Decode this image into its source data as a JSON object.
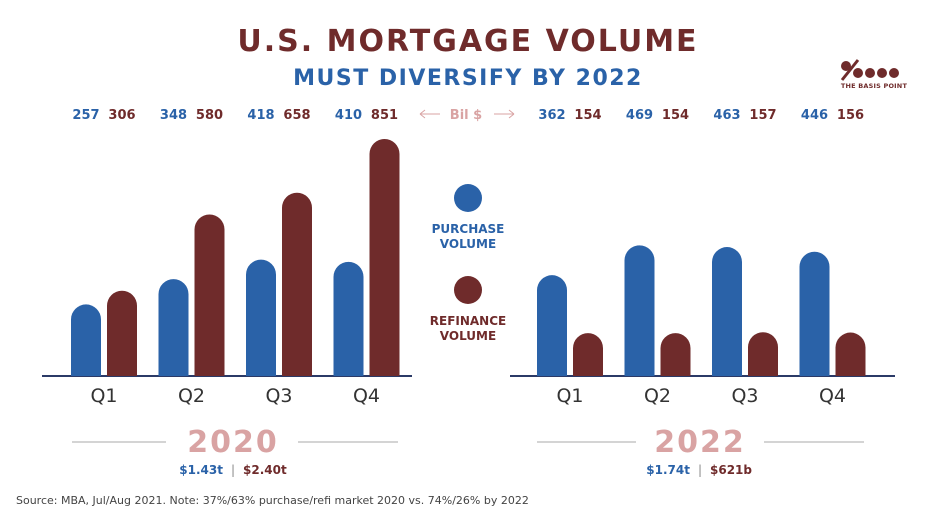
{
  "title": "U.S. MORTGAGE VOLUME",
  "subtitle": "MUST DIVERSIFY BY 2022",
  "logo": {
    "text": "THE BASIS POINT"
  },
  "source": "Source: MBA, Jul/Aug 2021. Note: 37%/63% purchase/refi market 2020 vs. 74%/26% by 2022",
  "colors": {
    "purchase": "#2a62a8",
    "refinance": "#6f2b2b",
    "year_label": "#d9a3a3",
    "axis": "#2b3a67"
  },
  "chart_data": {
    "type": "bar",
    "unit_label": "Bil $",
    "legend": [
      {
        "label_line1": "PURCHASE",
        "label_line2": "VOLUME"
      },
      {
        "label_line1": "REFINANCE",
        "label_line2": "VOLUME"
      }
    ],
    "groups": [
      {
        "year": "2020",
        "categories": [
          "Q1",
          "Q2",
          "Q3",
          "Q4"
        ],
        "purchase": [
          257,
          348,
          418,
          410
        ],
        "refinance": [
          306,
          580,
          658,
          851
        ],
        "total_purchase": "$1.43t",
        "total_refinance": "$2.40t",
        "total_separator": "|"
      },
      {
        "year": "2022",
        "categories": [
          "Q1",
          "Q2",
          "Q3",
          "Q4"
        ],
        "purchase": [
          362,
          469,
          463,
          446
        ],
        "refinance": [
          154,
          154,
          157,
          156
        ],
        "total_purchase": "$1.74t",
        "total_refinance": "$621b",
        "total_separator": "|"
      }
    ],
    "ylim": [
      0,
      851
    ]
  }
}
